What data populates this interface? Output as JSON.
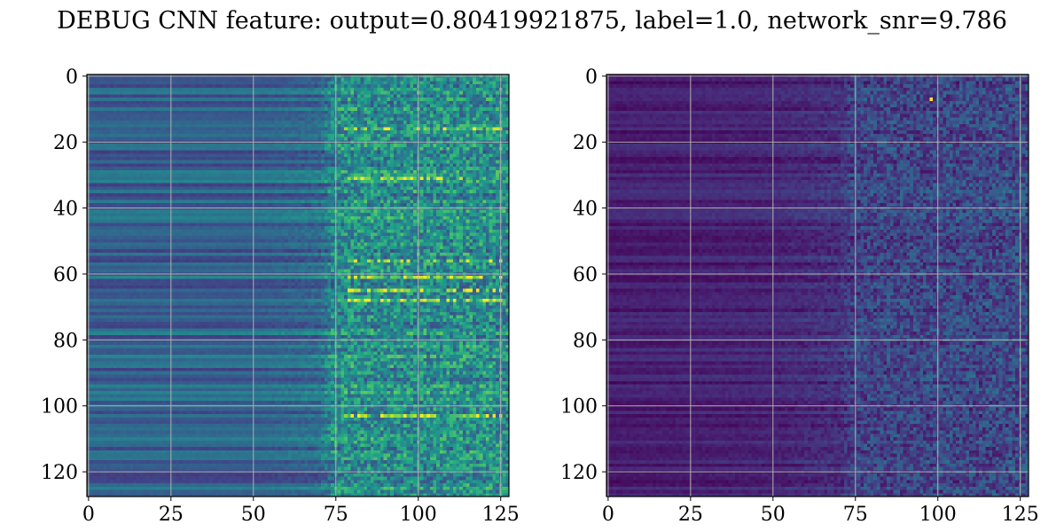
{
  "title": "DEBUG CNN feature: output=0.80419921875, label=1.0, network_snr=9.786",
  "chart_data": [
    {
      "type": "heatmap",
      "colormap": "viridis",
      "rows": 128,
      "cols": 128,
      "xlim": [
        0,
        127
      ],
      "ylim": [
        127,
        0
      ],
      "xticks": [
        0,
        25,
        50,
        75,
        100,
        125
      ],
      "yticks": [
        0,
        20,
        40,
        60,
        80,
        100,
        120
      ],
      "grid": true,
      "value_range": [
        0,
        1
      ],
      "column_profile": {
        "x": [
          0,
          50,
          70,
          75,
          127
        ],
        "mean": [
          0.32,
          0.32,
          0.36,
          0.5,
          0.5
        ],
        "noise": [
          0.02,
          0.02,
          0.06,
          0.2,
          0.22
        ]
      },
      "row_variation": 0.14,
      "bright_streak_rows": [
        16,
        31,
        56,
        61,
        65,
        68,
        103
      ],
      "bright_streak_x": [
        78,
        125
      ]
    },
    {
      "type": "heatmap",
      "colormap": "viridis",
      "rows": 128,
      "cols": 128,
      "xlim": [
        0,
        127
      ],
      "ylim": [
        127,
        0
      ],
      "xticks": [
        0,
        25,
        50,
        75,
        100,
        125
      ],
      "yticks": [
        0,
        20,
        40,
        60,
        80,
        100,
        120
      ],
      "grid": true,
      "value_range": [
        0,
        1
      ],
      "column_profile": {
        "x": [
          0,
          50,
          70,
          75,
          127
        ],
        "mean": [
          0.08,
          0.1,
          0.14,
          0.2,
          0.22
        ],
        "noise": [
          0.02,
          0.03,
          0.06,
          0.13,
          0.15
        ]
      },
      "row_variation": 0.06,
      "hot_pixel": {
        "x": 98,
        "y": 7
      }
    }
  ]
}
